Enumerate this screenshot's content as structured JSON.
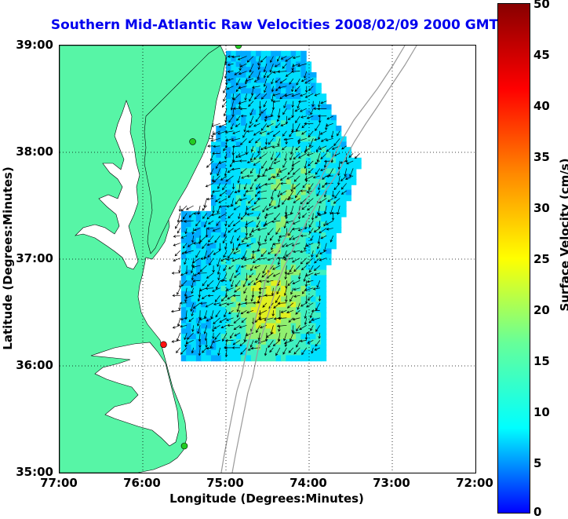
{
  "title": "Southern Mid-Atlantic Raw Velocities 2008/02/09 2000 GMT",
  "xaxis": {
    "label": "Longitude (Degrees:Minutes)",
    "ticks": [
      "77:00",
      "76:00",
      "75:00",
      "74:00",
      "73:00",
      "72:00"
    ]
  },
  "yaxis": {
    "label": "Latitude (Degrees:Minutes)",
    "ticks": [
      "39:00",
      "38:00",
      "37:00",
      "36:00",
      "35:00"
    ]
  },
  "colorbar": {
    "label": "Surface Velocity (cm/s)",
    "ticks": [
      "50",
      "45",
      "40",
      "35",
      "30",
      "25",
      "20",
      "15",
      "10",
      "5",
      "0"
    ],
    "colors": [
      "#0000ff",
      "#00ffff",
      "#66ff99",
      "#ffff00",
      "#ff8800",
      "#ff0000",
      "#880000"
    ]
  },
  "colors": {
    "land": "#57f5a6",
    "water": "#ffffff",
    "title": "#0000ee",
    "bathymetry": "#9a9a9a",
    "vectors": "#000000",
    "site_green": "#22cc22",
    "site_red": "#ff1111"
  },
  "map": {
    "lon_range": [
      "77:00",
      "72:00"
    ],
    "lat_range": [
      "35:00",
      "39:00"
    ],
    "grid": true,
    "stations": [
      {
        "lon": -75.4,
        "lat": 38.1,
        "status": "green"
      },
      {
        "lon": -74.85,
        "lat": 39.0,
        "status": "green"
      },
      {
        "lon": -75.75,
        "lat": 36.2,
        "status": "red"
      },
      {
        "lon": -75.5,
        "lat": 35.25,
        "status": "green"
      }
    ]
  }
}
